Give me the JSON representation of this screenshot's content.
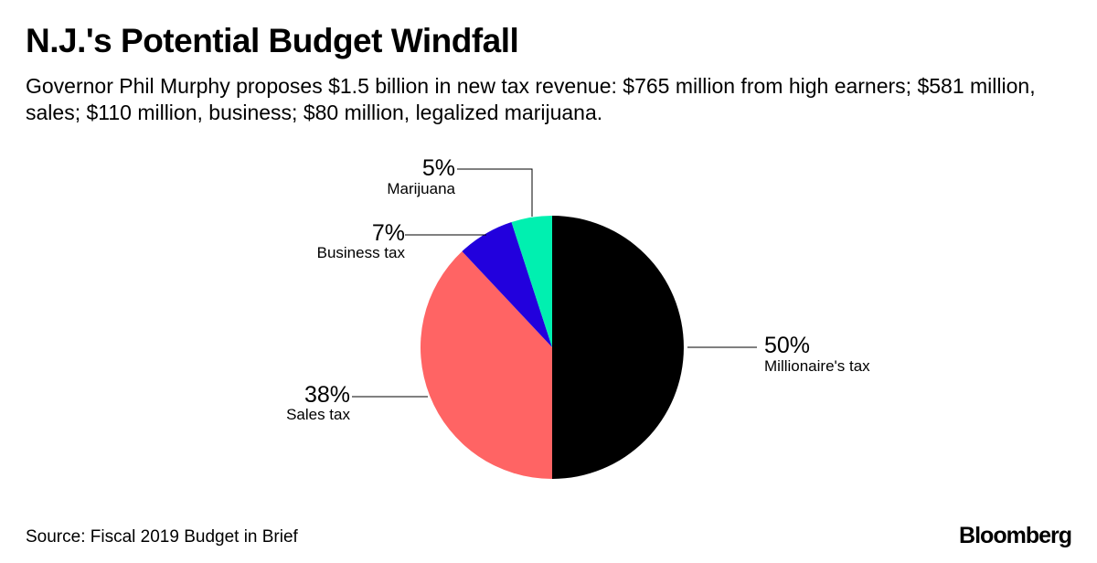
{
  "header": {
    "title": "N.J.'s Potential Budget Windfall",
    "subtitle": "Governor Phil Murphy proposes $1.5 billion in new tax revenue: $765 million from high earners; $581 million, sales; $110 million, business; $80 million, legalized marijuana."
  },
  "chart_data": {
    "type": "pie",
    "title": "N.J.'s Potential Budget Windfall",
    "slices": [
      {
        "label": "Millionaire's tax",
        "value": 50,
        "value_label": "50%",
        "color": "#000000"
      },
      {
        "label": "Sales tax",
        "value": 38,
        "value_label": "38%",
        "color": "#ff6464"
      },
      {
        "label": "Business tax",
        "value": 7,
        "value_label": "7%",
        "color": "#2200dd"
      },
      {
        "label": "Marijuana",
        "value": 5,
        "value_label": "5%",
        "color": "#00f0b0"
      }
    ],
    "start_angle": "12 o'clock",
    "direction": "clockwise",
    "legend": "none"
  },
  "footer": {
    "source": "Source: Fiscal 2019 Budget in Brief",
    "brand": "Bloomberg"
  }
}
